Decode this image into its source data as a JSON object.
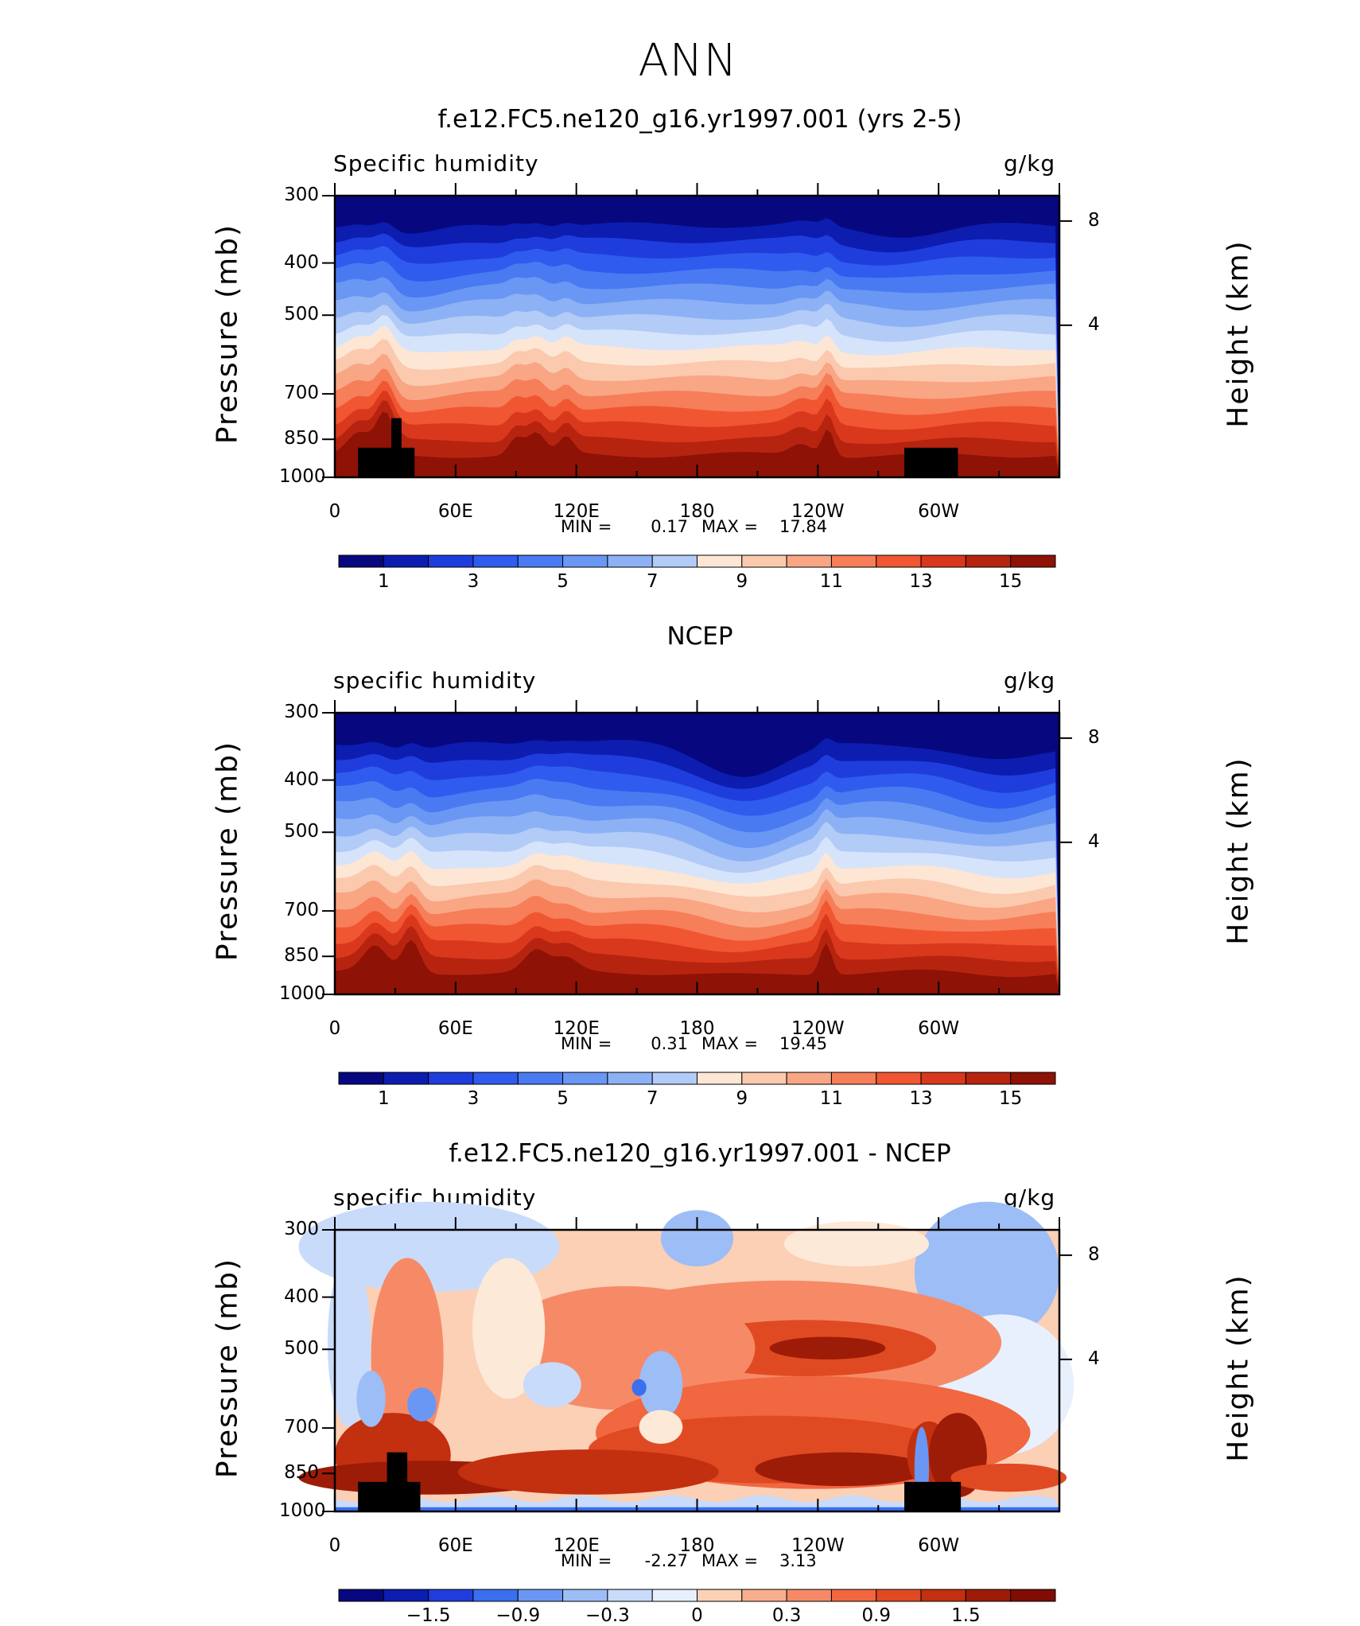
{
  "title": "ANN",
  "colors": {
    "abs": [
      "#07087f",
      "#0c1db0",
      "#1f3ddc",
      "#2f5cee",
      "#4a7af2",
      "#6a97f3",
      "#8db1f5",
      "#b2cbf7",
      "#d6e4fb",
      "#fde6d4",
      "#fbc9ae",
      "#f9a685",
      "#f67e58",
      "#ef5631",
      "#d9381c",
      "#b62410",
      "#8e1206"
    ],
    "diff": [
      "#07087f",
      "#0c1db0",
      "#1f3ddc",
      "#3a6ff0",
      "#6a97f3",
      "#9dbdf6",
      "#c9dbfa",
      "#e8f0fd",
      "#fde9d8",
      "#fbd0b5",
      "#f9ae8e",
      "#f68a67",
      "#f06740",
      "#e04a22",
      "#c2300f",
      "#9d1c08",
      "#7f0d04"
    ]
  },
  "chart_data": [
    {
      "type": "contour",
      "title": "f.e12.FC5.ne120_g16.yr1997.001 (yrs 2-5)",
      "left_label": "Specific humidity",
      "right_label": "g/kg",
      "ylabel": "Pressure (mb)",
      "y2label": "Height (km)",
      "xticks": [
        "0",
        "60E",
        "120E",
        "180",
        "120W",
        "60W"
      ],
      "yticks": [
        "300",
        "400",
        "500",
        "700",
        "850",
        "1000"
      ],
      "y2ticks": [
        "8",
        "4"
      ],
      "min_label": "MIN =",
      "min": "0.17",
      "max_label": "MAX =",
      "max": "17.84",
      "colorbar_labels": [
        "1",
        "3",
        "5",
        "7",
        "9",
        "11",
        "13",
        "15"
      ],
      "xlim": [
        0,
        360
      ],
      "ylim": [
        1000,
        300
      ],
      "masked": true
    },
    {
      "type": "contour",
      "title": "NCEP",
      "left_label": "specific humidity",
      "right_label": "g/kg",
      "ylabel": "Pressure (mb)",
      "y2label": "Height (km)",
      "xticks": [
        "0",
        "60E",
        "120E",
        "180",
        "120W",
        "60W"
      ],
      "yticks": [
        "300",
        "400",
        "500",
        "700",
        "850",
        "1000"
      ],
      "y2ticks": [
        "8",
        "4"
      ],
      "min_label": "MIN =",
      "min": "0.31",
      "max_label": "MAX =",
      "max": "19.45",
      "colorbar_labels": [
        "1",
        "3",
        "5",
        "7",
        "9",
        "11",
        "13",
        "15"
      ],
      "xlim": [
        0,
        360
      ],
      "ylim": [
        1000,
        300
      ],
      "masked": false
    },
    {
      "type": "contour",
      "title": "f.e12.FC5.ne120_g16.yr1997.001 - NCEP",
      "left_label": "specific humidity",
      "right_label": "g/kg",
      "ylabel": "Pressure (mb)",
      "y2label": "Height (km)",
      "xticks": [
        "0",
        "60E",
        "120E",
        "180",
        "120W",
        "60W"
      ],
      "yticks": [
        "300",
        "400",
        "500",
        "700",
        "850",
        "1000"
      ],
      "y2ticks": [
        "8",
        "4"
      ],
      "min_label": "MIN =",
      "min": "-2.27",
      "max_label": "MAX =",
      "max": "3.13",
      "colorbar_labels": [
        "−1.5",
        "−0.9",
        "−0.3",
        "0",
        "0.3",
        "0.9",
        "1.5"
      ],
      "xlim": [
        0,
        360
      ],
      "ylim": [
        1000,
        300
      ],
      "masked": true
    }
  ]
}
